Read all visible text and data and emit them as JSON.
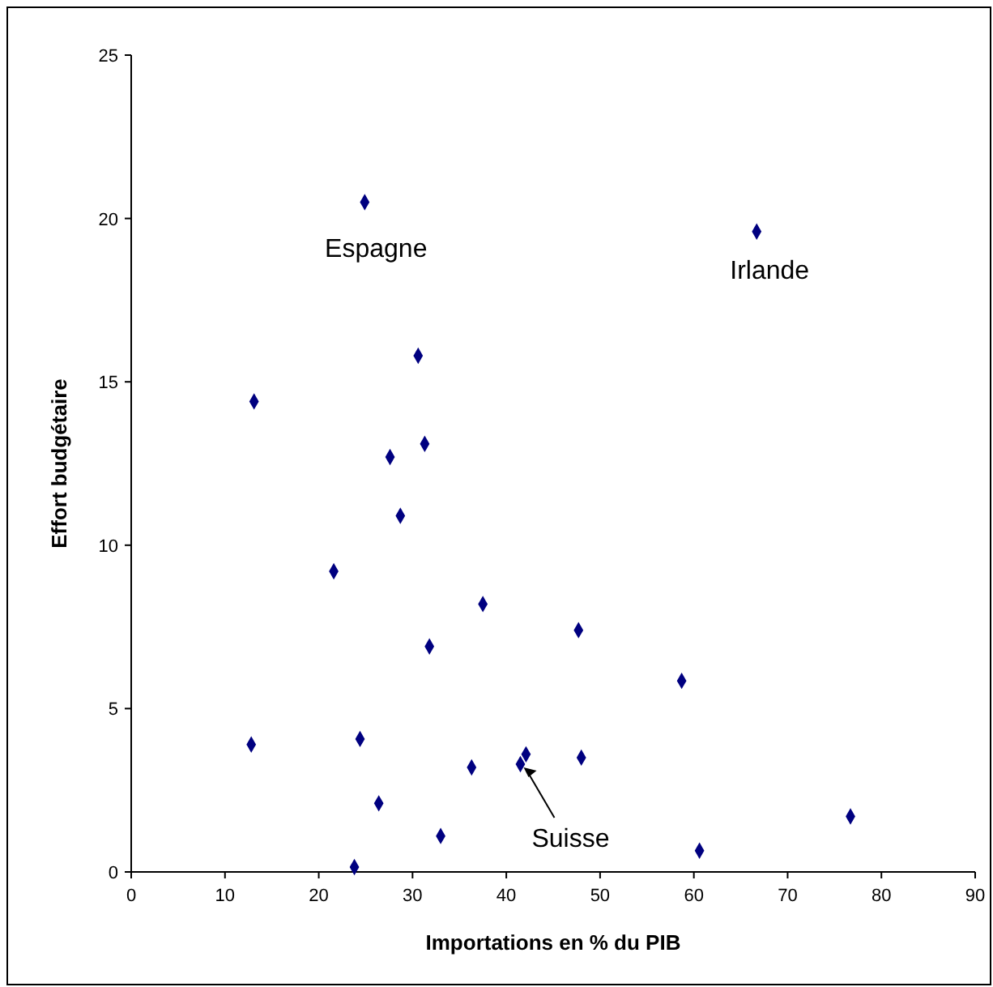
{
  "chart_data": {
    "type": "scatter",
    "xlabel": "Importations en % du PIB",
    "ylabel": "Effort budgétaire",
    "x": [
      24.9,
      66.7,
      30.6,
      13.1,
      31.3,
      27.6,
      28.7,
      21.6,
      37.5,
      47.7,
      31.8,
      58.7,
      12.8,
      24.4,
      36.3,
      41.5,
      42.1,
      48.0,
      26.4,
      33.0,
      76.7,
      60.6,
      23.8
    ],
    "series": [
      {
        "color": "#000080",
        "values": [
          20.5,
          19.6,
          15.8,
          14.4,
          13.1,
          12.7,
          10.9,
          9.2,
          8.2,
          7.4,
          6.9,
          5.85,
          3.9,
          4.07,
          3.2,
          3.3,
          3.6,
          3.5,
          2.1,
          1.1,
          1.7,
          0.65,
          0.15
        ]
      }
    ],
    "marker": "diamond",
    "grid": false,
    "xlim": [
      0,
      90
    ],
    "xticks": [
      0,
      10,
      20,
      30,
      40,
      50,
      60,
      70,
      80,
      90
    ],
    "ylim": [
      0,
      25
    ],
    "yticks": [
      0,
      5,
      10,
      15,
      20,
      25
    ],
    "annotations": [
      {
        "text": "Espagne",
        "x": 24.9,
        "y": 20.5
      },
      {
        "text": "Irlande",
        "x": 66.7,
        "y": 19.6
      },
      {
        "text": "Suisse",
        "x": 41.5,
        "y": 3.3
      }
    ]
  }
}
